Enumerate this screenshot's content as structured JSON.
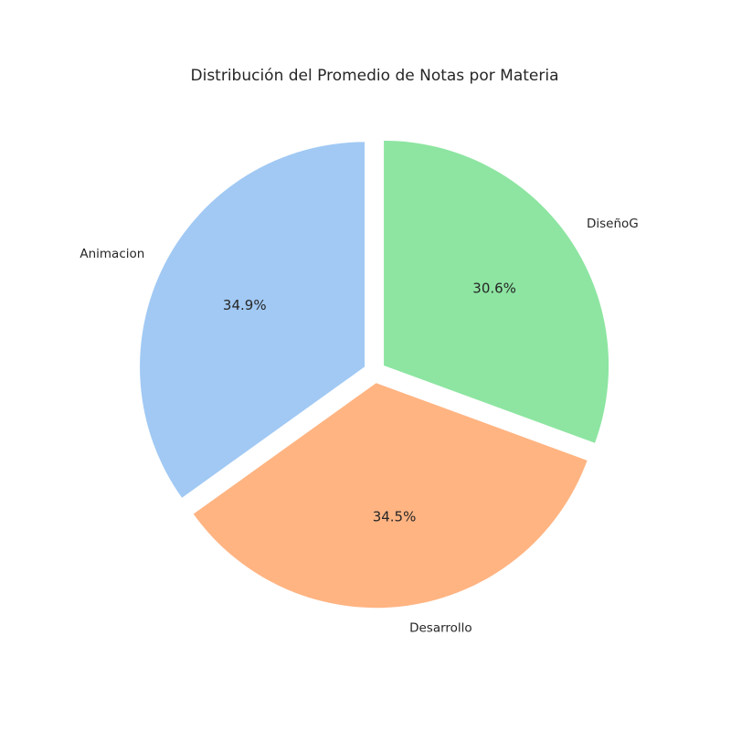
{
  "chart_data": {
    "type": "pie",
    "title": "Distribución del Promedio de Notas por Materia",
    "start_angle_deg": 90,
    "direction": "counterclockwise",
    "slices": [
      {
        "label": "Animacion",
        "percent": 34.9,
        "pct_label": "34.9%",
        "color": "#a1c9f4",
        "exploded": true
      },
      {
        "label": "Desarrollo",
        "percent": 34.5,
        "pct_label": "34.5%",
        "color": "#ffb482",
        "exploded": true
      },
      {
        "label": "DiseñoG",
        "percent": 30.6,
        "pct_label": "30.6%",
        "color": "#8de5a1",
        "exploded": true
      }
    ]
  }
}
